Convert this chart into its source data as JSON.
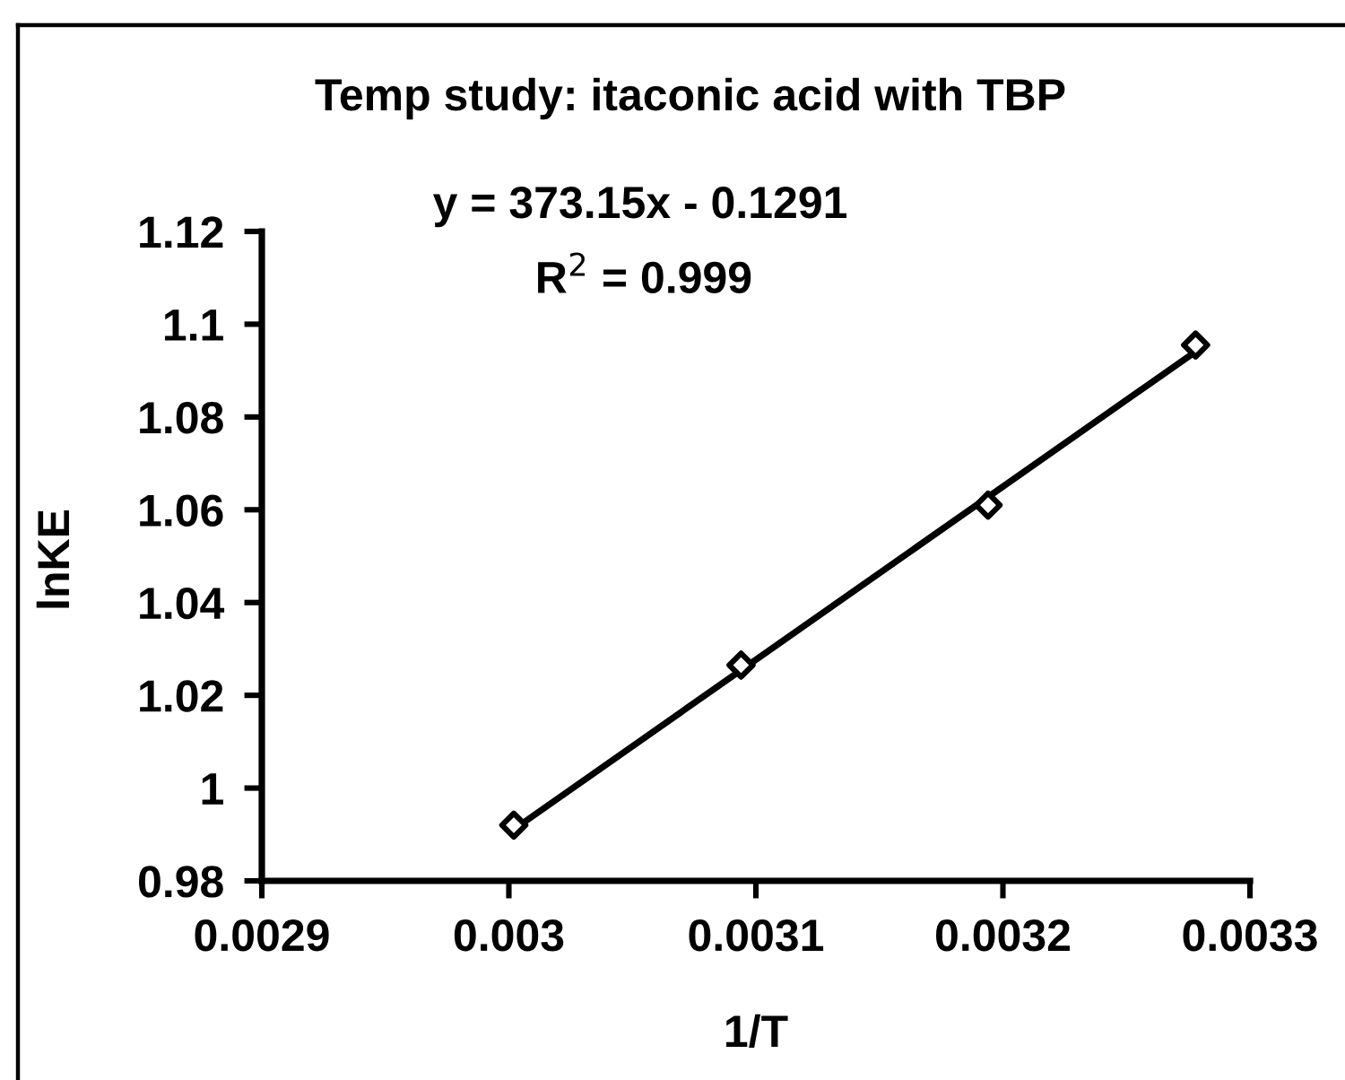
{
  "chart_data": {
    "type": "scatter",
    "title": "Temp study: itaconic acid with TBP",
    "xlabel": "1/T",
    "ylabel": "lnKE",
    "annotations": [
      "y = 373.15x - 0.1291",
      "R$^{2}$ = 0.999"
    ],
    "series": [
      {
        "color": "#000000",
        "marker": "diamond",
        "x": [
          0.003002,
          0.003094,
          0.003194,
          0.003278
        ],
        "values": [
          0.992,
          1.0265,
          1.061,
          1.0955
        ]
      },
      {
        "type": "line",
        "color": "#000000",
        "marker": "none",
        "x": [
          0.003002,
          0.003278
        ],
        "values": [
          0.9911,
          1.0941
        ]
      }
    ],
    "line_style": "solid",
    "xlim": [
      0.0029,
      0.0033
    ],
    "xticks": [
      0.0029,
      0.003,
      0.0031,
      0.0032,
      0.0033
    ],
    "ylim": [
      0.98,
      1.12
    ],
    "yticks": [
      0.98,
      1,
      1.02,
      1.04,
      1.06,
      1.08,
      1.1,
      1.12
    ]
  }
}
